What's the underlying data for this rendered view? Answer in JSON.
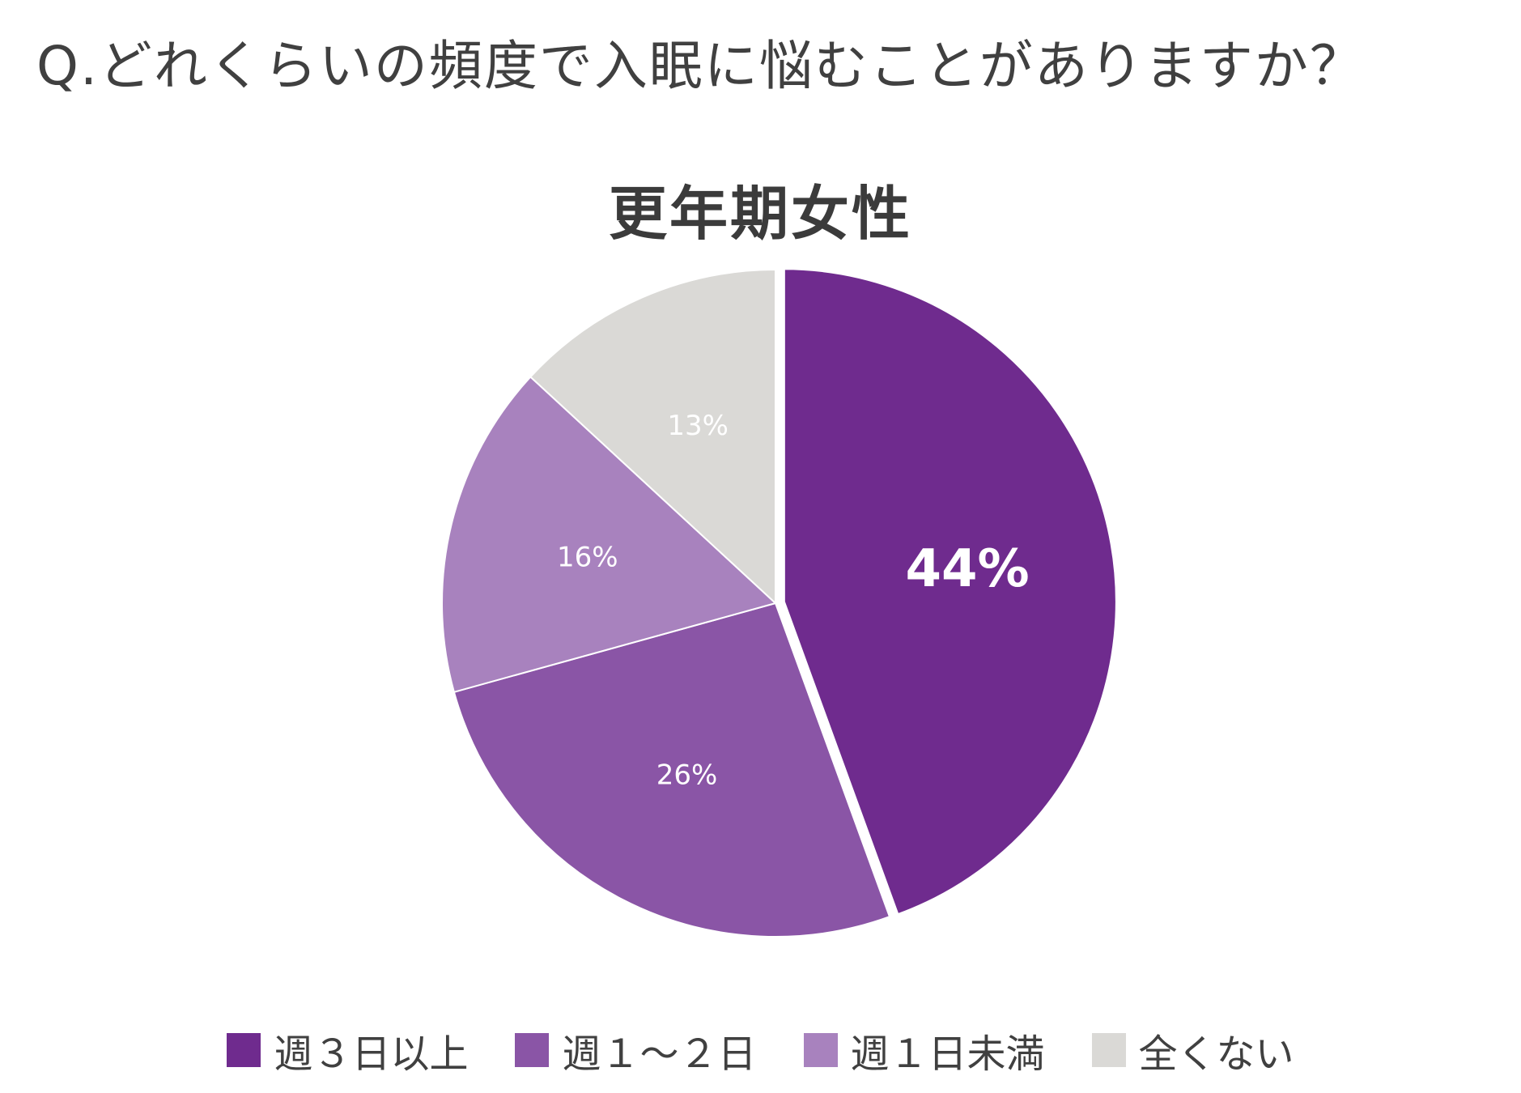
{
  "question": "Q.どれくらいの頻度で入眠に悩むことがありますか？",
  "colors": {
    "text": "#404040",
    "separator": "#ffffff",
    "label_text": "#ffffff"
  },
  "chart_data": {
    "type": "pie",
    "title": "更年期女性",
    "start_angle": "12 o'clock",
    "direction": "clockwise",
    "legend_position": "bottom",
    "slices": [
      {
        "label": "週３日以上",
        "value": 44,
        "display": "44%",
        "color": "#6f2b8e",
        "emphasized": true
      },
      {
        "label": "週１～２日",
        "value": 26,
        "display": "26%",
        "color": "#8a55a6",
        "emphasized": false
      },
      {
        "label": "週１日未満",
        "value": 16,
        "display": "16%",
        "color": "#a882be",
        "emphasized": false
      },
      {
        "label": "全くない",
        "value": 13,
        "display": "13%",
        "color": "#dad9d6",
        "emphasized": false
      }
    ]
  }
}
